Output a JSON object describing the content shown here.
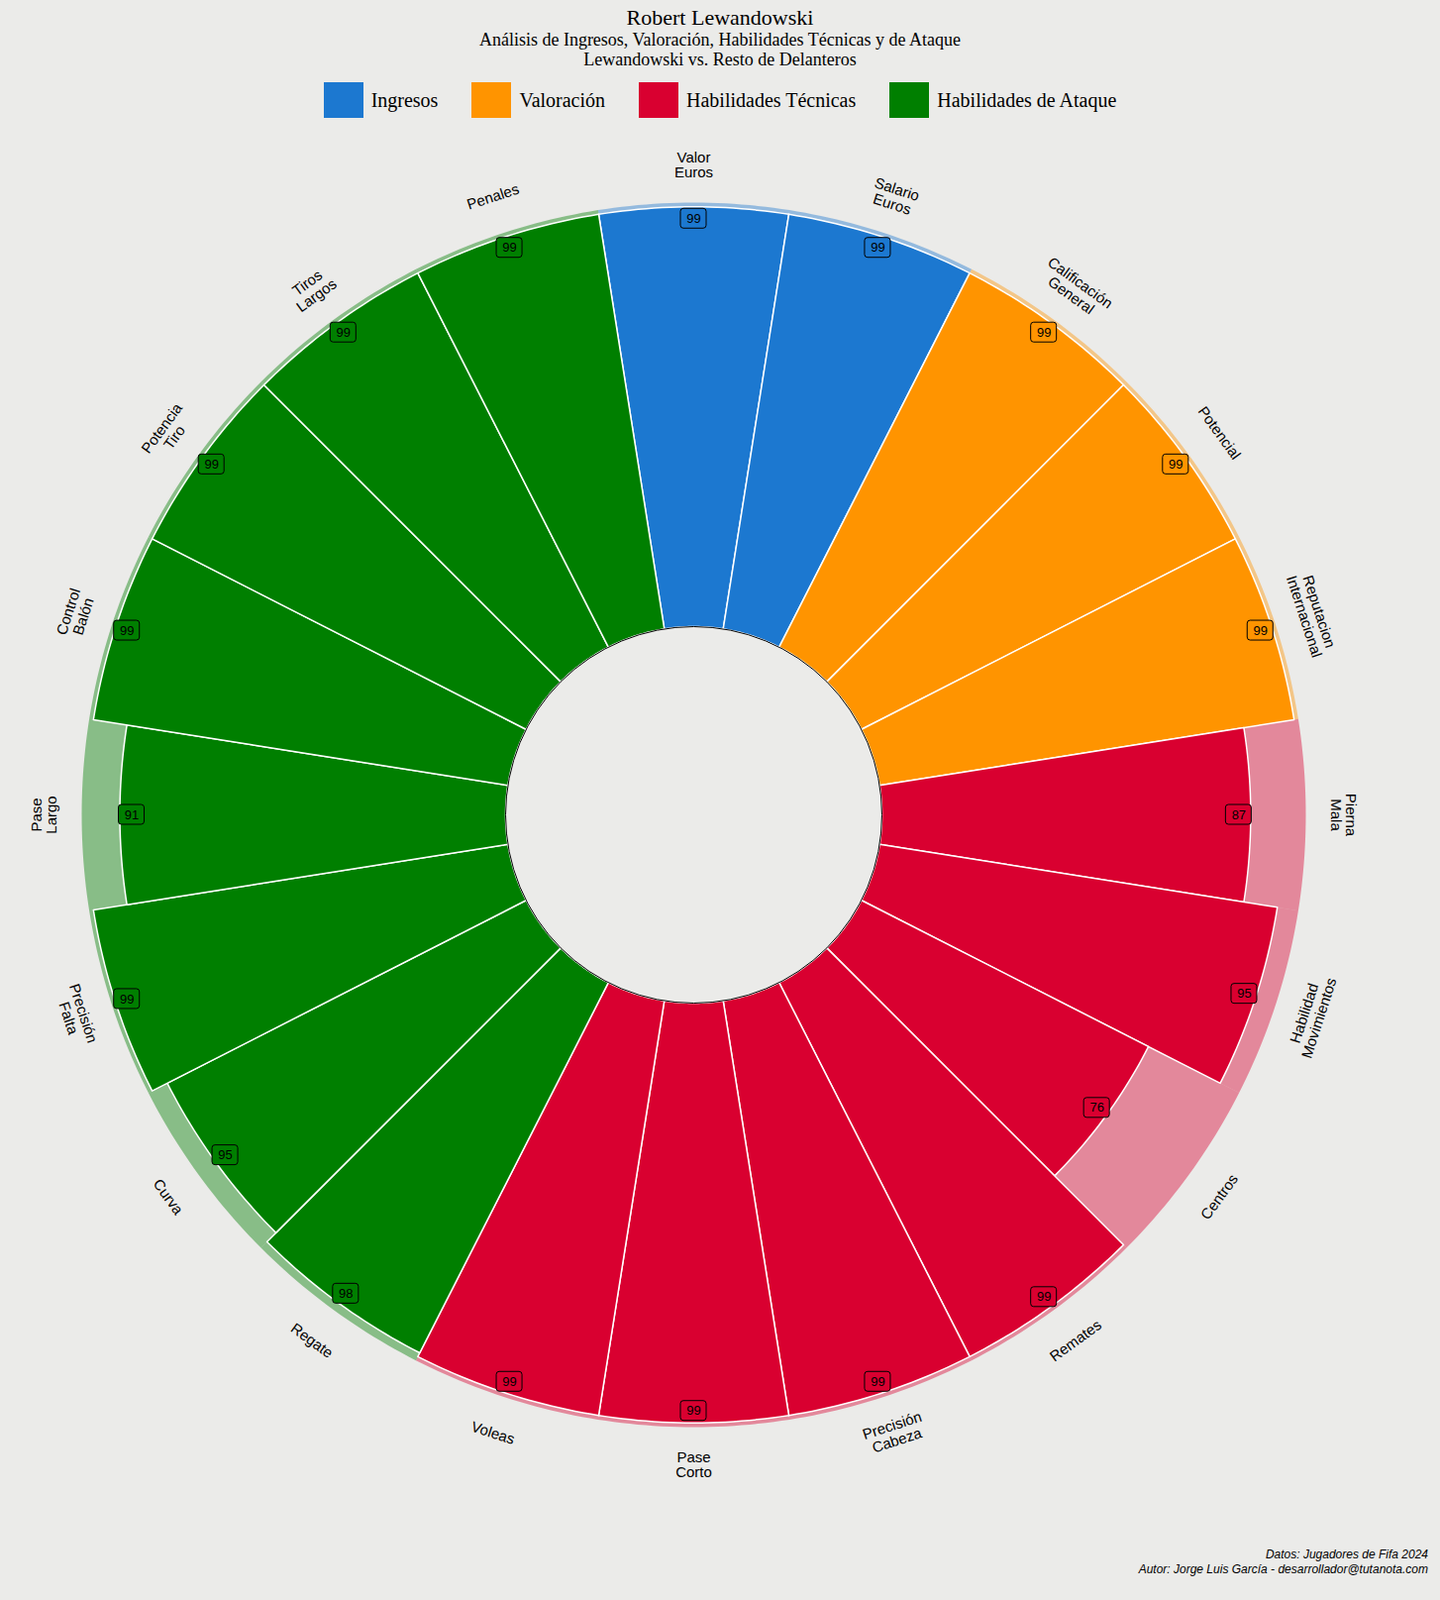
{
  "chart_data": {
    "type": "radial_bar",
    "title": "Robert Lewandowski",
    "subtitle": [
      "Análisis de Ingresos, Valoración, Habilidades Técnicas y de Ataque",
      "Lewandowski vs. Resto de Delanteros"
    ],
    "ylim": [
      0,
      100
    ],
    "tick_labels": false,
    "data_labels": true,
    "legend": "top",
    "series": [
      {
        "name": "Ingresos",
        "color": "#1c78d0",
        "categories": [
          "Valor\nEuros",
          "Salario\nEuros"
        ],
        "values": [
          99,
          99
        ]
      },
      {
        "name": "Valoración",
        "color": "#ff9400",
        "categories": [
          "Calificación\nGeneral",
          "Potencial",
          "Reputacion\nInternacional"
        ],
        "values": [
          99,
          99,
          99
        ]
      },
      {
        "name": "Habilidades Técnicas",
        "color": "#d90030",
        "categories": [
          "Pierna\nMala",
          "Habilidad\nMovimientos",
          "Centros",
          "Remates",
          "Precisión\nCabeza",
          "Pase\nCorto",
          "Voleas"
        ],
        "values": [
          87,
          95,
          76,
          99,
          99,
          99,
          99
        ]
      },
      {
        "name": "Habilidades de Ataque",
        "color": "#007f00",
        "categories": [
          "Regate",
          "Curva",
          "Precisión\nFalta",
          "Pase\nLargo",
          "Control\nBalón",
          "Potencia\nTiro",
          "Tiros\nLargos",
          "Penales"
        ],
        "values": [
          98,
          95,
          99,
          91,
          99,
          99,
          99,
          99
        ]
      }
    ],
    "caption": [
      "Datos: Jugadores de Fifa 2024",
      "Autor: Jorge Luis García - desarrollador@tutanota.com"
    ]
  }
}
